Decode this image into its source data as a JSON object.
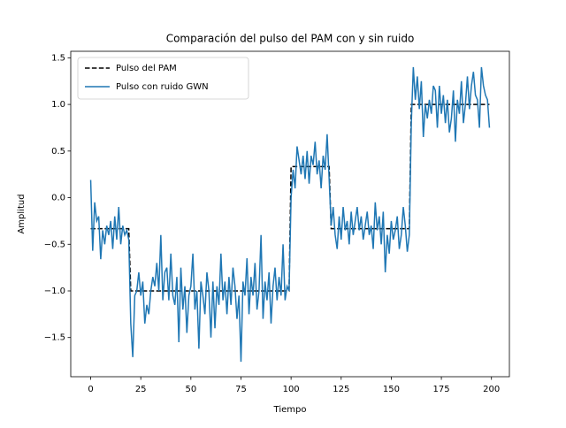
{
  "chart_data": {
    "type": "line",
    "title": "Comparación del pulso del PAM con y sin ruido",
    "xlabel": "Tiempo",
    "ylabel": "Amplitud",
    "xlim": [
      -9.95,
      208.95
    ],
    "ylim": [
      -1.92,
      1.57
    ],
    "xticks": [
      0,
      25,
      50,
      75,
      100,
      125,
      150,
      175,
      200
    ],
    "yticks": [
      {
        "value": -1.5,
        "label": "−1.5"
      },
      {
        "value": -1.0,
        "label": "−1.0"
      },
      {
        "value": -0.5,
        "label": "−0.5"
      },
      {
        "value": 0,
        "label": "0.0"
      },
      {
        "value": 0.5,
        "label": "0.5"
      },
      {
        "value": 1.0,
        "label": "1.0"
      },
      {
        "value": 1.5,
        "label": "1.5"
      }
    ],
    "legend": "upper left",
    "series": [
      {
        "name": "Pulso del PAM",
        "color": "#000000",
        "dashed": true,
        "x": [
          0,
          19,
          20,
          99,
          100,
          119,
          120,
          159,
          160,
          199
        ],
        "values": [
          -0.333,
          -0.333,
          -1,
          -1,
          0.333,
          0.333,
          -0.333,
          -0.333,
          1,
          1
        ]
      },
      {
        "name": "Pulso con ruido GWN",
        "color": "#1f77b4",
        "dashed": false,
        "x": [
          0,
          1,
          2,
          3,
          4,
          5,
          6,
          7,
          8,
          9,
          10,
          11,
          12,
          13,
          14,
          15,
          16,
          17,
          18,
          19,
          20,
          21,
          22,
          23,
          24,
          25,
          26,
          27,
          28,
          29,
          30,
          31,
          32,
          33,
          34,
          35,
          36,
          37,
          38,
          39,
          40,
          41,
          42,
          43,
          44,
          45,
          46,
          47,
          48,
          49,
          50,
          51,
          52,
          53,
          54,
          55,
          56,
          57,
          58,
          59,
          60,
          61,
          62,
          63,
          64,
          65,
          66,
          67,
          68,
          69,
          70,
          71,
          72,
          73,
          74,
          75,
          76,
          77,
          78,
          79,
          80,
          81,
          82,
          83,
          84,
          85,
          86,
          87,
          88,
          89,
          90,
          91,
          92,
          93,
          94,
          95,
          96,
          97,
          98,
          99,
          100,
          101,
          102,
          103,
          104,
          105,
          106,
          107,
          108,
          109,
          110,
          111,
          112,
          113,
          114,
          115,
          116,
          117,
          118,
          119,
          120,
          121,
          122,
          123,
          124,
          125,
          126,
          127,
          128,
          129,
          130,
          131,
          132,
          133,
          134,
          135,
          136,
          137,
          138,
          139,
          140,
          141,
          142,
          143,
          144,
          145,
          146,
          147,
          148,
          149,
          150,
          151,
          152,
          153,
          154,
          155,
          156,
          157,
          158,
          159,
          160,
          161,
          162,
          163,
          164,
          165,
          166,
          167,
          168,
          169,
          170,
          171,
          172,
          173,
          174,
          175,
          176,
          177,
          178,
          179,
          180,
          181,
          182,
          183,
          184,
          185,
          186,
          187,
          188,
          189,
          190,
          191,
          192,
          193,
          194,
          195,
          196,
          197,
          198,
          199
        ],
        "values": [
          0.19,
          -0.57,
          -0.05,
          -0.25,
          -0.2,
          -0.66,
          -0.35,
          -0.5,
          -0.3,
          -0.4,
          -0.25,
          -0.55,
          -0.2,
          -0.45,
          -0.1,
          -0.5,
          -0.3,
          -0.4,
          -0.35,
          -0.45,
          -1.35,
          -1.71,
          -1.05,
          -1.0,
          -0.8,
          -1.05,
          -0.9,
          -1.35,
          -1.15,
          -1.25,
          -1.0,
          -0.85,
          -0.95,
          -0.7,
          -1.0,
          -0.4,
          -1.1,
          -0.8,
          -0.75,
          -1.1,
          -0.6,
          -1.05,
          -1.15,
          -0.85,
          -1.55,
          -0.75,
          -1.2,
          -0.95,
          -1.45,
          -1.05,
          -0.95,
          -0.6,
          -1.2,
          -1.0,
          -1.62,
          -0.9,
          -1.05,
          -1.25,
          -0.8,
          -1.0,
          -1.5,
          -0.9,
          -1.4,
          -0.95,
          -1.15,
          -0.6,
          -1.1,
          -0.9,
          -1.25,
          -0.85,
          -1.15,
          -0.75,
          -0.95,
          -1.3,
          -1.05,
          -1.76,
          -0.9,
          -1.05,
          -0.65,
          -1.25,
          -0.85,
          -1.05,
          -0.7,
          -1.2,
          -1.0,
          -0.4,
          -1.3,
          -0.9,
          -1.1,
          -0.8,
          -1.35,
          -0.95,
          -0.75,
          -1.1,
          -0.85,
          -1.05,
          -0.5,
          -1.1,
          -0.95,
          -1.0,
          0.0,
          0.3,
          0.1,
          0.55,
          0.4,
          0.25,
          0.45,
          0.2,
          0.5,
          0.15,
          0.45,
          0.35,
          0.6,
          0.25,
          0.4,
          0.1,
          0.45,
          0.3,
          0.68,
          0.2,
          -0.3,
          -0.1,
          -0.4,
          -0.55,
          -0.2,
          -0.45,
          -0.1,
          -0.35,
          -0.25,
          -0.5,
          -0.15,
          -0.4,
          -0.25,
          -0.1,
          -0.35,
          -0.2,
          -0.45,
          -0.3,
          -0.15,
          -0.4,
          -0.3,
          -0.55,
          -0.05,
          -0.35,
          -0.2,
          -0.5,
          -0.15,
          -0.8,
          -0.4,
          -0.6,
          -0.25,
          -0.45,
          -0.35,
          -0.2,
          -0.55,
          -0.4,
          -0.1,
          -0.3,
          -0.58,
          -0.4,
          0.8,
          1.4,
          1.05,
          1.3,
          0.95,
          1.25,
          0.65,
          1.0,
          0.85,
          1.05,
          0.9,
          1.2,
          1.15,
          0.75,
          1.2,
          0.9,
          1.1,
          0.8,
          1.05,
          0.7,
          0.85,
          1.15,
          0.6,
          1.05,
          0.9,
          1.25,
          0.8,
          1.0,
          1.3,
          0.95,
          1.2,
          1.35,
          1.1,
          1.05,
          0.75,
          1.4,
          1.2,
          1.1,
          1.05,
          0.75
        ]
      }
    ]
  }
}
